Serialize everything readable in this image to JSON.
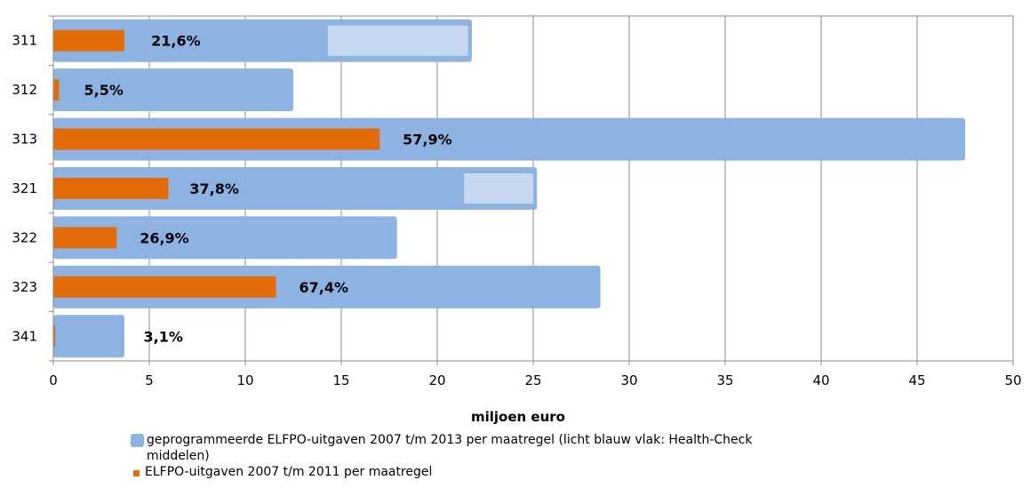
{
  "colors": {
    "programmed": "#8db3e2",
    "health_check": "#c6d9f1",
    "spent": "#e36c09",
    "grid": "#8c8c8c"
  },
  "chart_data": {
    "type": "bar",
    "orientation": "horizontal",
    "categories": [
      "311",
      "312",
      "313",
      "321",
      "322",
      "323",
      "341"
    ],
    "series": [
      {
        "name": "geprogrammeerde ELFPO-uitgaven 2007 t/m 2013 per maatregel (licht blauw vlak: Health-Check middelen)",
        "values": [
          21.8,
          12.5,
          47.5,
          25.2,
          17.9,
          28.5,
          3.7
        ]
      },
      {
        "name": "ELFPO-uitgaven 2007 t/m 2011 per maatregel",
        "values": [
          3.7,
          0.3,
          17.0,
          6.0,
          3.3,
          11.6,
          0.1
        ]
      }
    ],
    "health_check": [
      {
        "category": "311",
        "from": 14.3,
        "to": 21.6
      },
      {
        "category": "321",
        "from": 21.4,
        "to": 25.0
      }
    ],
    "data_labels": [
      "21,6%",
      "5,5%",
      "57,9%",
      "37,8%",
      "26,9%",
      "67,4%",
      "3,1%"
    ],
    "label_x": [
      5.1,
      1.6,
      18.2,
      7.1,
      4.5,
      12.8,
      4.7
    ],
    "xlabel": "miljoen euro",
    "xlim": [
      0,
      50
    ],
    "xticks": [
      "0",
      "5",
      "10",
      "15",
      "20",
      "25",
      "30",
      "35",
      "40",
      "45",
      "50"
    ],
    "grid": true,
    "legend_position": "bottom"
  },
  "legend": {
    "programmed_line1": "geprogrammeerde ELFPO-uitgaven 2007 t/m 2013 per maatregel (licht blauw vlak: Health-Check",
    "programmed_line2": "middelen)",
    "spent": "ELFPO-uitgaven 2007 t/m 2011 per maatregel"
  }
}
